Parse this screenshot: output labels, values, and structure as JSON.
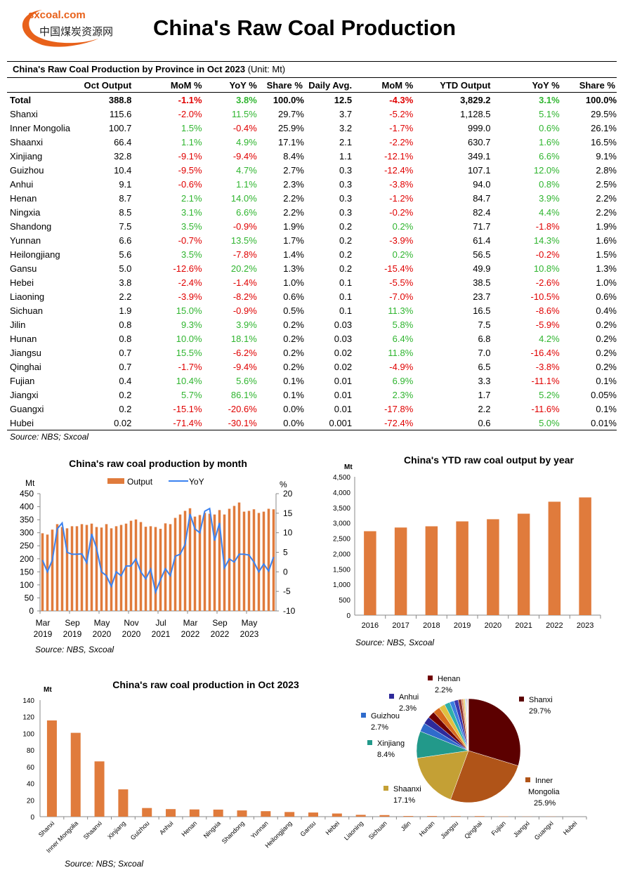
{
  "logo": {
    "url": "sxcoal.com",
    "cn": "中国煤炭资源网"
  },
  "title": "China's Raw Coal Production",
  "table": {
    "title": "China's Raw Coal Production by Province in Oct 2023",
    "unit": "(Unit: Mt)",
    "headers": [
      "",
      "Oct Output",
      "MoM %",
      "YoY %",
      "Share %",
      "Daily Avg.",
      "MoM %",
      "YTD Output",
      "YoY %",
      "Share %"
    ],
    "rows": [
      [
        "Total",
        "388.8",
        "-1.1%",
        "3.8%",
        "100.0%",
        "12.5",
        "-4.3%",
        "3,829.2",
        "3.1%",
        "100.0%"
      ],
      [
        "Shanxi",
        "115.6",
        "-2.0%",
        "11.5%",
        "29.7%",
        "3.7",
        "-5.2%",
        "1,128.5",
        "5.1%",
        "29.5%"
      ],
      [
        "Inner Mongolia",
        "100.7",
        "1.5%",
        "-0.4%",
        "25.9%",
        "3.2",
        "-1.7%",
        "999.0",
        "0.6%",
        "26.1%"
      ],
      [
        "Shaanxi",
        "66.4",
        "1.1%",
        "4.9%",
        "17.1%",
        "2.1",
        "-2.2%",
        "630.7",
        "1.6%",
        "16.5%"
      ],
      [
        "Xinjiang",
        "32.8",
        "-9.1%",
        "-9.4%",
        "8.4%",
        "1.1",
        "-12.1%",
        "349.1",
        "6.6%",
        "9.1%"
      ],
      [
        "Guizhou",
        "10.4",
        "-9.5%",
        "4.7%",
        "2.7%",
        "0.3",
        "-12.4%",
        "107.1",
        "12.0%",
        "2.8%"
      ],
      [
        "Anhui",
        "9.1",
        "-0.6%",
        "1.1%",
        "2.3%",
        "0.3",
        "-3.8%",
        "94.0",
        "0.8%",
        "2.5%"
      ],
      [
        "Henan",
        "8.7",
        "2.1%",
        "14.0%",
        "2.2%",
        "0.3",
        "-1.2%",
        "84.7",
        "3.9%",
        "2.2%"
      ],
      [
        "Ningxia",
        "8.5",
        "3.1%",
        "6.6%",
        "2.2%",
        "0.3",
        "-0.2%",
        "82.4",
        "4.4%",
        "2.2%"
      ],
      [
        "Shandong",
        "7.5",
        "3.5%",
        "-0.9%",
        "1.9%",
        "0.2",
        "0.2%",
        "71.7",
        "-1.8%",
        "1.9%"
      ],
      [
        "Yunnan",
        "6.6",
        "-0.7%",
        "13.5%",
        "1.7%",
        "0.2",
        "-3.9%",
        "61.4",
        "14.3%",
        "1.6%"
      ],
      [
        "Heilongjiang",
        "5.6",
        "3.5%",
        "-7.8%",
        "1.4%",
        "0.2",
        "0.2%",
        "56.5",
        "-0.2%",
        "1.5%"
      ],
      [
        "Gansu",
        "5.0",
        "-12.6%",
        "20.2%",
        "1.3%",
        "0.2",
        "-15.4%",
        "49.9",
        "10.8%",
        "1.3%"
      ],
      [
        "Hebei",
        "3.8",
        "-2.4%",
        "-1.4%",
        "1.0%",
        "0.1",
        "-5.5%",
        "38.5",
        "-2.6%",
        "1.0%"
      ],
      [
        "Liaoning",
        "2.2",
        "-3.9%",
        "-8.2%",
        "0.6%",
        "0.1",
        "-7.0%",
        "23.7",
        "-10.5%",
        "0.6%"
      ],
      [
        "Sichuan",
        "1.9",
        "15.0%",
        "-0.9%",
        "0.5%",
        "0.1",
        "11.3%",
        "16.5",
        "-8.6%",
        "0.4%"
      ],
      [
        "Jilin",
        "0.8",
        "9.3%",
        "3.9%",
        "0.2%",
        "0.03",
        "5.8%",
        "7.5",
        "-5.9%",
        "0.2%"
      ],
      [
        "Hunan",
        "0.8",
        "10.0%",
        "18.1%",
        "0.2%",
        "0.03",
        "6.4%",
        "6.8",
        "4.2%",
        "0.2%"
      ],
      [
        "Jiangsu",
        "0.7",
        "15.5%",
        "-6.2%",
        "0.2%",
        "0.02",
        "11.8%",
        "7.0",
        "-16.4%",
        "0.2%"
      ],
      [
        "Qinghai",
        "0.7",
        "-1.7%",
        "-9.4%",
        "0.2%",
        "0.02",
        "-4.9%",
        "6.5",
        "-3.8%",
        "0.2%"
      ],
      [
        "Fujian",
        "0.4",
        "10.4%",
        "5.6%",
        "0.1%",
        "0.01",
        "6.9%",
        "3.3",
        "-11.1%",
        "0.1%"
      ],
      [
        "Jiangxi",
        "0.2",
        "5.7%",
        "86.1%",
        "0.1%",
        "0.01",
        "2.3%",
        "1.7",
        "5.2%",
        "0.05%"
      ],
      [
        "Guangxi",
        "0.2",
        "-15.1%",
        "-20.6%",
        "0.0%",
        "0.01",
        "-17.8%",
        "2.2",
        "-11.6%",
        "0.1%"
      ],
      [
        "Hubei",
        "0.02",
        "-71.4%",
        "-30.1%",
        "0.0%",
        "0.001",
        "-72.4%",
        "0.6",
        "5.0%",
        "0.01%"
      ]
    ],
    "source": "Source: NBS; Sxcoal",
    "colors": {
      "negative": "#e00000",
      "positive": "#2fb52f"
    }
  },
  "chart_data": [
    {
      "type": "bar+line",
      "title": "China's raw coal production  by month",
      "ylabel": "Mt",
      "y2label": "%",
      "ylim": [
        0,
        450
      ],
      "y2lim": [
        -10,
        20
      ],
      "yticks": [
        0,
        50,
        100,
        150,
        200,
        250,
        300,
        350,
        400,
        450
      ],
      "y2ticks": [
        -10,
        -5,
        0,
        5,
        10,
        15,
        20
      ],
      "xtick_labels": [
        [
          "Mar",
          "2019"
        ],
        [
          "Sep",
          "2019"
        ],
        [
          "May",
          "2020"
        ],
        [
          "Nov",
          "2020"
        ],
        [
          "Jul",
          "2021"
        ],
        [
          "Mar",
          "2022"
        ],
        [
          "Sep",
          "2022"
        ],
        [
          "May",
          "2023"
        ]
      ],
      "legend": "top",
      "series": [
        {
          "name": "Output",
          "type": "bar",
          "color": "#e07b3c",
          "values": [
            298,
            293,
            312,
            333,
            322,
            317,
            325,
            325,
            333,
            330,
            335,
            322,
            320,
            333,
            317,
            325,
            330,
            335,
            346,
            351,
            341,
            323,
            325,
            322,
            315,
            336,
            333,
            357,
            370,
            384,
            394,
            362,
            368,
            376,
            373,
            370,
            387,
            370,
            392,
            403,
            416,
            381,
            384,
            390,
            376,
            381,
            392,
            390
          ]
        },
        {
          "name": "YoY",
          "type": "line",
          "color": "#3b82f0",
          "values": [
            3,
            0,
            3,
            11,
            12.5,
            5,
            4.5,
            4.5,
            4.6,
            2.3,
            9.7,
            6,
            0,
            -1,
            -3.7,
            0,
            -1,
            1.5,
            1.5,
            3.3,
            0,
            -1.8,
            0.7,
            -5.2,
            -2,
            0.8,
            -1,
            4,
            4.5,
            7,
            14.8,
            11,
            10,
            15.5,
            16.2,
            8,
            12.5,
            1,
            3.3,
            2.5,
            4.5,
            4.5,
            4.3,
            2.5,
            0,
            2,
            0.2,
            3.8
          ]
        }
      ],
      "source": "Source: NBS, Sxcoal"
    },
    {
      "type": "bar",
      "title": "China's YTD raw coal output by year",
      "ylabel": "Mt",
      "ylim": [
        0,
        4500
      ],
      "yticks": [
        "0",
        "500",
        "1,000",
        "1,500",
        "2,000",
        "2,500",
        "3,000",
        "3,500",
        "4,000",
        "4,500"
      ],
      "categories": [
        "2016",
        "2017",
        "2018",
        "2019",
        "2020",
        "2021",
        "2022",
        "2023"
      ],
      "values": [
        2730,
        2850,
        2890,
        3050,
        3120,
        3300,
        3690,
        3829.2
      ],
      "color": "#e07b3c",
      "source": "Source: NBS, Sxcoal"
    },
    {
      "type": "bar",
      "title": "China's raw coal production in Oct 2023",
      "ylabel": "Mt",
      "ylim": [
        0,
        140
      ],
      "yticks": [
        0,
        20,
        40,
        60,
        80,
        100,
        120,
        140
      ],
      "categories": [
        "Shanxi",
        "Inner Mongolia",
        "Shaanxi",
        "Xinjiang",
        "Guizhou",
        "Anhui",
        "Henan",
        "Ningxia",
        "Shandong",
        "Yunnan",
        "Heilongjiang",
        "Gansu",
        "Hebei",
        "Liaoning",
        "Sichuan",
        "Jilin",
        "Hunan",
        "Jiangsu",
        "Qinghai",
        "Fujian",
        "Jiangxi",
        "Guangxi",
        "Hubei"
      ],
      "values": [
        115.6,
        100.7,
        66.4,
        32.8,
        10.4,
        9.1,
        8.7,
        8.5,
        7.5,
        6.6,
        5.6,
        5.0,
        3.8,
        2.2,
        1.9,
        0.8,
        0.8,
        0.7,
        0.7,
        0.4,
        0.2,
        0.2,
        0.02
      ],
      "color": "#e07b3c",
      "source": "Source:  NBS; Sxcoal"
    },
    {
      "type": "pie",
      "slices": [
        {
          "name": "Shanxi",
          "value": 29.7,
          "label": "29.7%",
          "color": "#5c0000"
        },
        {
          "name": "Inner Mongolia",
          "value": 25.9,
          "label": "25.9%",
          "color": "#b05418"
        },
        {
          "name": "Shaanxi",
          "value": 17.1,
          "label": "17.1%",
          "color": "#c4a035"
        },
        {
          "name": "Xinjiang",
          "value": 8.4,
          "label": "8.4%",
          "color": "#22998a"
        },
        {
          "name": "Guizhou",
          "value": 2.7,
          "label": "2.7%",
          "color": "#2f6bcc"
        },
        {
          "name": "Anhui",
          "value": 2.3,
          "label": "2.3%",
          "color": "#2e2a9a"
        },
        {
          "name": "Henan",
          "value": 2.2,
          "label": "2.2%",
          "color": "#700000"
        },
        {
          "name": "Ningxia",
          "value": 2.2,
          "color": "#d86a1c"
        },
        {
          "name": "Shandong",
          "value": 1.9,
          "color": "#e0c040"
        },
        {
          "name": "Yunnan",
          "value": 1.7,
          "color": "#30b0a8"
        },
        {
          "name": "Heilongjiang",
          "value": 1.4,
          "color": "#3a7fe0"
        },
        {
          "name": "Gansu",
          "value": 1.3,
          "color": "#3a36b0"
        },
        {
          "name": "Hebei",
          "value": 1.0,
          "color": "#8a3030"
        },
        {
          "name": "Liaoning",
          "value": 0.6,
          "color": "#e09060"
        },
        {
          "name": "Sichuan",
          "value": 0.5,
          "color": "#e8d070"
        },
        {
          "name": "Jilin",
          "value": 0.2,
          "color": "#70c8c0"
        },
        {
          "name": "Hunan",
          "value": 0.2,
          "color": "#80a8e8"
        },
        {
          "name": "Jiangsu",
          "value": 0.2,
          "color": "#8080d0"
        },
        {
          "name": "Qinghai",
          "value": 0.2,
          "color": "#c08080"
        },
        {
          "name": "Fujian",
          "value": 0.1,
          "color": "#f0b080"
        },
        {
          "name": "Jiangxi",
          "value": 0.1,
          "color": "#f0e0a0"
        },
        {
          "name": "Guangxi",
          "value": 0.05,
          "color": "#a0e0d8"
        },
        {
          "name": "Hubei",
          "value": 0.05,
          "color": "#b0c8f0"
        }
      ]
    }
  ]
}
